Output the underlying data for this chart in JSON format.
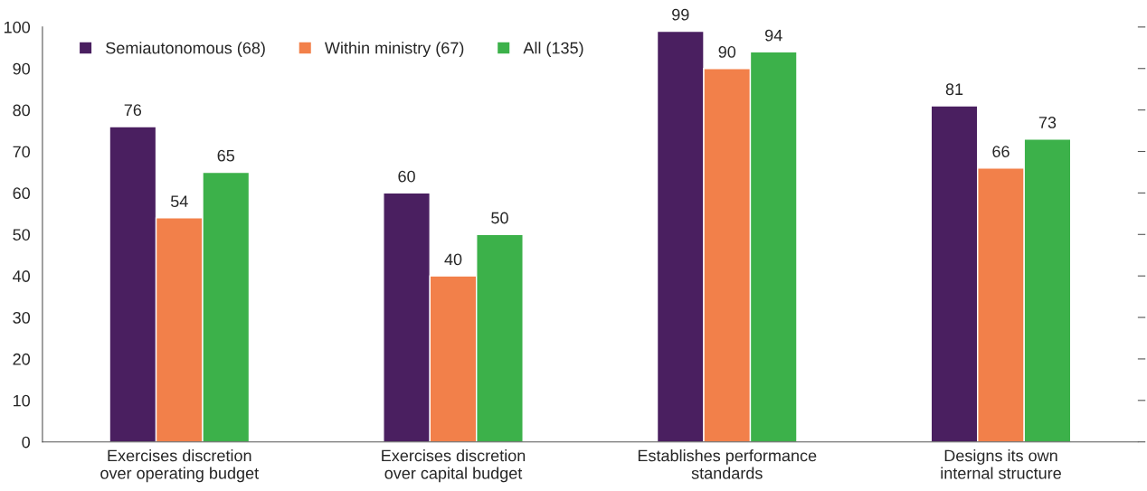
{
  "chart_data": {
    "type": "bar",
    "categories": [
      "Exercises discretion\nover operating budget",
      "Exercises discretion\nover capital budget",
      "Establishes performance\nstandards",
      "Designs its own\ninternal structure"
    ],
    "series": [
      {
        "name": "Semiautonomous (68)",
        "color": "#4a1f60",
        "values": [
          76,
          60,
          99,
          81
        ]
      },
      {
        "name": "Within ministry (67)",
        "color": "#f2804a",
        "values": [
          54,
          40,
          90,
          66
        ]
      },
      {
        "name": "All (135)",
        "color": "#3cb14a",
        "values": [
          65,
          50,
          94,
          73
        ]
      }
    ],
    "ylim": [
      0,
      100
    ],
    "yticks": [
      0,
      10,
      20,
      30,
      40,
      50,
      60,
      70,
      80,
      90,
      100
    ],
    "data_labels": true,
    "legend": "top left",
    "grid": false
  }
}
